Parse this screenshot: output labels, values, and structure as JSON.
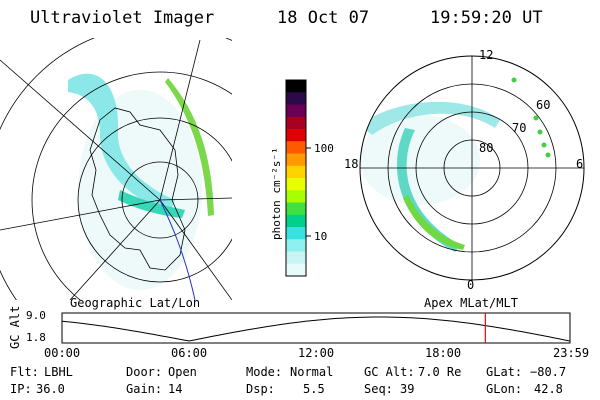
{
  "header": {
    "instrument": "Ultraviolet Imager",
    "date": "18 Oct 07",
    "time": "19:59:20 UT"
  },
  "colorbar": {
    "unit_label": "photon cm⁻²s⁻¹",
    "ticks": [
      "100",
      "10"
    ],
    "colors": [
      "#000000",
      "#2b0a4a",
      "#6a0055",
      "#a80020",
      "#e00000",
      "#ff5a00",
      "#ff9a00",
      "#ffd200",
      "#e8ff00",
      "#a8ff00",
      "#40e040",
      "#00d08a",
      "#38e0e0",
      "#8ff0f0",
      "#c8f4f4",
      "#e8fbfb"
    ]
  },
  "left_map": {
    "caption": "Geographic Lat/Lon"
  },
  "right_map": {
    "caption": "Apex MLat/MLT",
    "lat_labels": [
      "80",
      "70",
      "60"
    ],
    "mlt_labels": {
      "top": "12",
      "left": "18",
      "right": "6",
      "bottom": "0"
    }
  },
  "altitude_plot": {
    "ylabel": "GC Alt",
    "yticks": [
      "9.0",
      "1.8"
    ],
    "xticks": [
      "00:00",
      "06:00",
      "12:00",
      "18:00",
      "23:59"
    ],
    "current_marker_hours": 20.0,
    "marker_color": "#ff0000"
  },
  "status": {
    "flt_label": "Flt:",
    "flt_value": "LBHL",
    "ip_label": "IP:",
    "ip_value": "36.0",
    "door_label": "Door:",
    "door_value": "Open",
    "gain_label": "Gain:",
    "gain_value": "14",
    "mode_label": "Mode:",
    "mode_value": "Normal",
    "dsp_label": "Dsp:",
    "dsp_value": "5.5",
    "gcalt_label": "GC Alt:",
    "gcalt_value": "7.0 Re",
    "seq_label": "Seq:",
    "seq_value": "39",
    "glat_label": "GLat:",
    "glat_value": "−80.7",
    "glon_label": "GLon:",
    "glon_value": "42.8"
  }
}
